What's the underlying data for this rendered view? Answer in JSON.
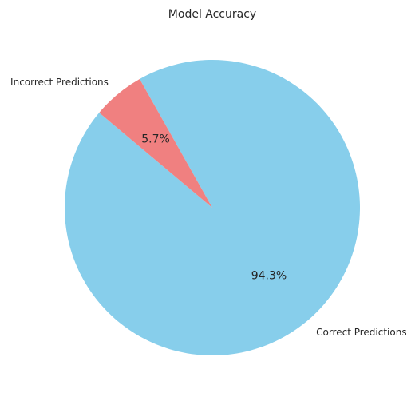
{
  "chart_data": {
    "type": "pie",
    "title": "Model Accuracy",
    "slices": [
      {
        "label": "Correct Predictions",
        "value": 94.3,
        "pct_label": "94.3%",
        "color": "#87CEEB"
      },
      {
        "label": "Incorrect Predictions",
        "value": 5.7,
        "pct_label": "5.7%",
        "color": "#F08080"
      }
    ],
    "start_angle_deg": 140,
    "direction": "counterclockwise"
  }
}
